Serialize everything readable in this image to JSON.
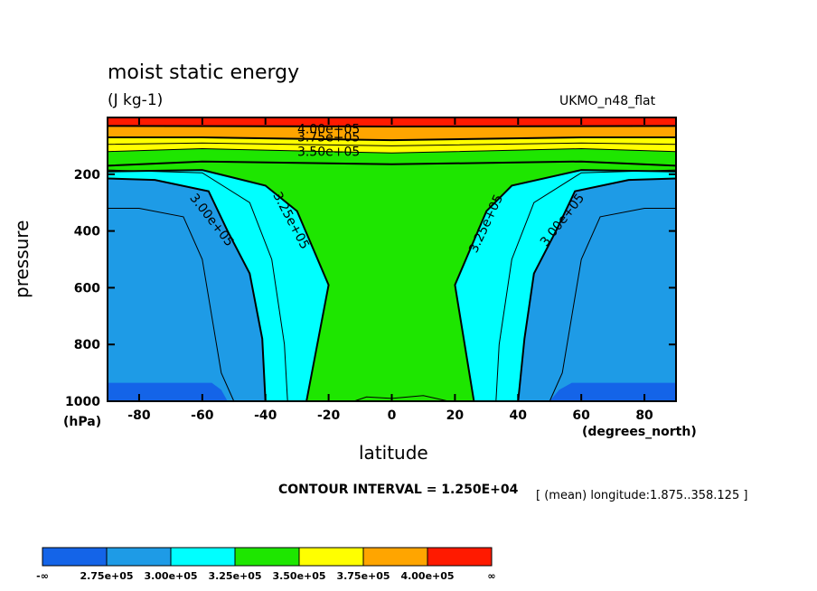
{
  "header": {
    "title": "moist static energy",
    "units": "(J kg-1)",
    "model": "UKMO_n48_flat"
  },
  "axes": {
    "ylabel": "pressure",
    "y_unit": "(hPa)",
    "xlabel": "latitude",
    "x_unit": "(degrees_north)"
  },
  "footer": {
    "contour_interval": "CONTOUR INTERVAL = 1.250E+04",
    "mean_note": "[ (mean) longitude:1.875..358.125 ]"
  },
  "colors": {
    "lt275": "#1464e8",
    "c275_300": "#1e9be6",
    "c300_325": "#00ffff",
    "c325_350": "#1ee600",
    "c350_375": "#ffff00",
    "c375_400": "#ffa500",
    "gt400": "#ff1a00"
  },
  "chart_data": {
    "type": "heatmap",
    "title": "moist static energy",
    "units": "(J kg-1)",
    "xlabel": "latitude",
    "ylabel": "pressure",
    "x_ticks": [
      -80,
      -60,
      -40,
      -20,
      0,
      20,
      40,
      60,
      80
    ],
    "y_ticks": [
      200,
      400,
      600,
      800,
      1000
    ],
    "xlim": [
      -90,
      90
    ],
    "ylim": [
      1000,
      0
    ],
    "contour_interval": 12500,
    "contour_labels": [
      "4.00e+05",
      "3.75e+05",
      "3.50e+05",
      "3.25e+05",
      "3.00e+05",
      "3.25e+05",
      "3.00e+05"
    ],
    "colorbar": {
      "levels": [
        "-∞",
        "2.75e+05",
        "3.00e+05",
        "3.25e+05",
        "3.50e+05",
        "3.75e+05",
        "4.00e+05",
        "∞"
      ],
      "colors": [
        "#1464e8",
        "#1e9be6",
        "#00ffff",
        "#1ee600",
        "#ffff00",
        "#ffa500",
        "#ff1a00"
      ]
    }
  }
}
